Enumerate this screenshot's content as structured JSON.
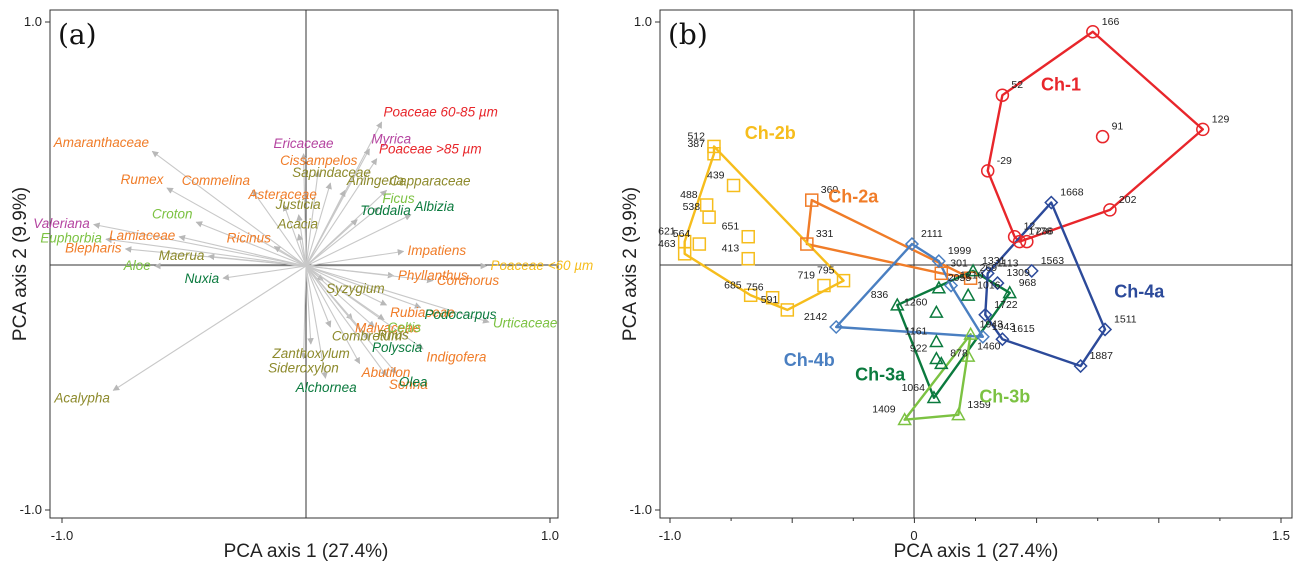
{
  "panels": {
    "a": {
      "label": "(a)",
      "xlabel": "PCA axis 1 (27.4%)",
      "ylabel": "PCA axis 2 (9.9%)",
      "xticks": [
        "-1.0",
        "1.0"
      ],
      "yticks": [
        "1.0",
        "-1.0"
      ]
    },
    "b": {
      "label": "(b)",
      "xlabel": "PCA axis 1 (27.4%)",
      "ylabel": "PCA axis 2 (9.9%)",
      "xticks": [
        "-1.0",
        "0",
        "1.5"
      ],
      "yticks": [
        "1.0",
        "-1.0"
      ]
    }
  },
  "colors": {
    "red": "#e8262b",
    "orange": "#f07c28",
    "yellow": "#f6bd1c",
    "olive": "#8d8a2c",
    "lightgreen": "#7cc242",
    "darkgreen": "#0b7a3e",
    "magenta": "#b544a0",
    "blue": "#4a7fc1",
    "navy": "#2c4a9a",
    "arrow": "#c8c8c8"
  },
  "chart_data": [
    {
      "type": "scatter",
      "subtype": "pca-loadings-biplot",
      "panel": "(a)",
      "xlabel": "PCA axis 1 (27.4%)",
      "ylabel": "PCA axis 2 (9.9%)",
      "xlim": [
        -1.0,
        1.0
      ],
      "ylim": [
        -1.0,
        1.0
      ],
      "grid": false,
      "zero_lines": true,
      "loadings": [
        {
          "name": "Poaceae 60-85 µm",
          "x": 0.31,
          "y": 0.59,
          "color": "red"
        },
        {
          "name": "Poaceae >85 µm",
          "x": 0.29,
          "y": 0.44,
          "color": "red"
        },
        {
          "name": "Myrica",
          "x": 0.26,
          "y": 0.48,
          "color": "magenta"
        },
        {
          "name": "Ericaceae",
          "x": -0.01,
          "y": 0.46,
          "color": "magenta"
        },
        {
          "name": "Valeriana",
          "x": -0.87,
          "y": 0.17,
          "color": "magenta"
        },
        {
          "name": "Amaranthaceae",
          "x": -0.63,
          "y": 0.47,
          "color": "orange"
        },
        {
          "name": "Cissampelos",
          "x": 0.05,
          "y": 0.39,
          "color": "orange"
        },
        {
          "name": "Rumex",
          "x": -0.57,
          "y": 0.32,
          "color": "orange"
        },
        {
          "name": "Commelina",
          "x": -0.22,
          "y": 0.31,
          "color": "orange"
        },
        {
          "name": "Asteraceae",
          "x": -0.09,
          "y": 0.25,
          "color": "orange"
        },
        {
          "name": "Lamiaceae",
          "x": -0.52,
          "y": 0.12,
          "color": "orange"
        },
        {
          "name": "Blepharis",
          "x": -0.74,
          "y": 0.07,
          "color": "orange"
        },
        {
          "name": "Ricinus",
          "x": -0.13,
          "y": 0.08,
          "color": "orange"
        },
        {
          "name": "Impatiens",
          "x": 0.4,
          "y": 0.06,
          "color": "orange"
        },
        {
          "name": "Phyllanthus",
          "x": 0.36,
          "y": -0.04,
          "color": "orange"
        },
        {
          "name": "Corchorus",
          "x": 0.52,
          "y": -0.06,
          "color": "orange"
        },
        {
          "name": "Rubiaceae",
          "x": 0.33,
          "y": -0.16,
          "color": "orange"
        },
        {
          "name": "Malvaceae",
          "x": 0.19,
          "y": -0.22,
          "color": "orange"
        },
        {
          "name": "Indigofera",
          "x": 0.48,
          "y": -0.34,
          "color": "orange"
        },
        {
          "name": "Abutilon",
          "x": 0.22,
          "y": -0.4,
          "color": "orange"
        },
        {
          "name": "Senna",
          "x": 0.33,
          "y": -0.45,
          "color": "orange"
        },
        {
          "name": "Sapindaceae",
          "x": 0.1,
          "y": 0.34,
          "color": "olive"
        },
        {
          "name": "Aningeria",
          "x": 0.16,
          "y": 0.31,
          "color": "olive"
        },
        {
          "name": "Capparaceae",
          "x": 0.33,
          "y": 0.31,
          "color": "olive"
        },
        {
          "name": "Justicia",
          "x": -0.03,
          "y": 0.21,
          "color": "olive"
        },
        {
          "name": "Acacia",
          "x": -0.03,
          "y": 0.13,
          "color": "olive"
        },
        {
          "name": "Maerua",
          "x": -0.4,
          "y": 0.04,
          "color": "olive"
        },
        {
          "name": "Syzygium",
          "x": 0.07,
          "y": -0.06,
          "color": "olive"
        },
        {
          "name": "Combretum",
          "x": 0.1,
          "y": -0.25,
          "color": "olive"
        },
        {
          "name": "Rhus",
          "x": 0.28,
          "y": -0.25,
          "color": "olive"
        },
        {
          "name": "Zanthoxylum",
          "x": 0.02,
          "y": -0.32,
          "color": "olive"
        },
        {
          "name": "Sideroxylon",
          "x": -0.01,
          "y": -0.38,
          "color": "olive"
        },
        {
          "name": "Acalypha",
          "x": -0.79,
          "y": -0.51,
          "color": "olive"
        },
        {
          "name": "Croton",
          "x": -0.45,
          "y": 0.18,
          "color": "lightgreen"
        },
        {
          "name": "Euphorbia",
          "x": -0.82,
          "y": 0.11,
          "color": "lightgreen"
        },
        {
          "name": "Aloe",
          "x": -0.62,
          "y": 0.0,
          "color": "lightgreen"
        },
        {
          "name": "Ficus",
          "x": 0.3,
          "y": 0.24,
          "color": "lightgreen"
        },
        {
          "name": "Poaceae <60 µm",
          "x": 0.74,
          "y": 0.0,
          "color": "yellow"
        },
        {
          "name": "Celtis",
          "x": 0.32,
          "y": -0.22,
          "color": "lightgreen"
        },
        {
          "name": "Urticaceae",
          "x": 0.75,
          "y": -0.23,
          "color": "lightgreen"
        },
        {
          "name": "Toddalia",
          "x": 0.21,
          "y": 0.19,
          "color": "darkgreen"
        },
        {
          "name": "Albizia",
          "x": 0.43,
          "y": 0.21,
          "color": "darkgreen"
        },
        {
          "name": "Nuxia",
          "x": -0.34,
          "y": -0.05,
          "color": "darkgreen"
        },
        {
          "name": "Podocarpus",
          "x": 0.47,
          "y": -0.17,
          "color": "darkgreen"
        },
        {
          "name": "Polyscia",
          "x": 0.26,
          "y": -0.3,
          "color": "darkgreen"
        },
        {
          "name": "Olea",
          "x": 0.37,
          "y": -0.44,
          "color": "darkgreen"
        },
        {
          "name": "Alchornea",
          "x": 0.08,
          "y": -0.46,
          "color": "darkgreen"
        }
      ]
    },
    {
      "type": "scatter",
      "subtype": "pca-sample-scores",
      "panel": "(b)",
      "xlabel": "PCA axis 1 (27.4%)",
      "ylabel": "PCA axis 2 (9.9%)",
      "xlim": [
        -1.0,
        1.5
      ],
      "ylim": [
        -1.0,
        1.0
      ],
      "grid": false,
      "zero_lines": true,
      "groups": [
        {
          "name": "Ch-1",
          "marker": "circle",
          "color": "red",
          "points": [
            {
              "label": "166",
              "x": 0.73,
              "y": 0.96
            },
            {
              "label": "52",
              "x": 0.36,
              "y": 0.7
            },
            {
              "label": "129",
              "x": 1.18,
              "y": 0.56
            },
            {
              "label": "91",
              "x": 0.77,
              "y": 0.53
            },
            {
              "label": "-29",
              "x": 0.3,
              "y": 0.39
            },
            {
              "label": "202",
              "x": 0.8,
              "y": 0.23
            },
            {
              "label": "12",
              "x": 0.41,
              "y": 0.12
            },
            {
              "label": "236",
              "x": 0.46,
              "y": 0.1
            },
            {
              "label": "1776",
              "x": 0.43,
              "y": 0.1
            }
          ],
          "hull": [
            "166",
            "129",
            "202",
            "1776",
            "12",
            "-29",
            "52"
          ]
        },
        {
          "name": "Ch-2a",
          "marker": "square",
          "color": "orange",
          "points": [
            {
              "label": "360",
              "x": -0.42,
              "y": 0.27
            },
            {
              "label": "331",
              "x": -0.44,
              "y": 0.09
            },
            {
              "label": "301",
              "x": 0.11,
              "y": -0.03
            },
            {
              "label": "269",
              "x": 0.23,
              "y": -0.05
            }
          ],
          "hull": [
            "360",
            "269",
            "301",
            "331"
          ]
        },
        {
          "name": "Ch-2b",
          "marker": "square",
          "color": "yellow",
          "points": [
            {
              "label": "512",
              "x": -0.82,
              "y": 0.49
            },
            {
              "label": "387",
              "x": -0.82,
              "y": 0.46
            },
            {
              "label": "439",
              "x": -0.74,
              "y": 0.33
            },
            {
              "label": "488",
              "x": -0.85,
              "y": 0.25
            },
            {
              "label": "538",
              "x": -0.84,
              "y": 0.2
            },
            {
              "label": "621",
              "x": -0.94,
              "y": 0.1
            },
            {
              "label": "564",
              "x": -0.88,
              "y": 0.09
            },
            {
              "label": "463",
              "x": -0.94,
              "y": 0.05
            },
            {
              "label": "651",
              "x": -0.68,
              "y": 0.12
            },
            {
              "label": "413",
              "x": -0.68,
              "y": 0.03
            },
            {
              "label": "756",
              "x": -0.58,
              "y": -0.13
            },
            {
              "label": "685",
              "x": -0.67,
              "y": -0.12
            },
            {
              "label": "591",
              "x": -0.52,
              "y": -0.18
            },
            {
              "label": "719",
              "x": -0.37,
              "y": -0.08
            },
            {
              "label": "795",
              "x": -0.29,
              "y": -0.06
            }
          ],
          "hull": [
            "512",
            "795",
            "591",
            "685",
            "463",
            "621",
            "387"
          ]
        },
        {
          "name": "Ch-3a",
          "marker": "triangle",
          "color": "darkgreen",
          "points": [
            {
              "label": "1331",
              "x": 0.24,
              "y": -0.02
            },
            {
              "label": "968",
              "x": 0.39,
              "y": -0.11
            },
            {
              "label": "836",
              "x": -0.07,
              "y": -0.16
            },
            {
              "label": "2055",
              "x": 0.1,
              "y": -0.09
            },
            {
              "label": "1016",
              "x": 0.22,
              "y": -0.12
            },
            {
              "label": "1260",
              "x": 0.09,
              "y": -0.19
            },
            {
              "label": "1161",
              "x": 0.09,
              "y": -0.31
            },
            {
              "label": "922",
              "x": 0.09,
              "y": -0.38
            },
            {
              "label": "878",
              "x": 0.11,
              "y": -0.4
            },
            {
              "label": "1064",
              "x": 0.08,
              "y": -0.54
            }
          ],
          "hull": [
            "1331",
            "968",
            "1064",
            "836"
          ]
        },
        {
          "name": "Ch-3b",
          "marker": "triangle",
          "color": "lightgreen",
          "points": [
            {
              "label": "1943",
              "x": 0.23,
              "y": -0.28
            },
            {
              "label": "1460",
              "x": 0.22,
              "y": -0.37
            },
            {
              "label": "1359",
              "x": 0.18,
              "y": -0.61
            },
            {
              "label": "1409",
              "x": -0.04,
              "y": -0.63
            }
          ],
          "hull": [
            "1943",
            "1359",
            "1409"
          ]
        },
        {
          "name": "Ch-4a",
          "marker": "diamond",
          "color": "navy",
          "points": [
            {
              "label": "1668",
              "x": 0.56,
              "y": 0.26
            },
            {
              "label": "1113",
              "x": 0.3,
              "y": -0.03
            },
            {
              "label": "1309",
              "x": 0.34,
              "y": -0.07
            },
            {
              "label": "1563",
              "x": 0.48,
              "y": -0.02
            },
            {
              "label": "1722",
              "x": 0.29,
              "y": -0.2
            },
            {
              "label": "1615",
              "x": 0.36,
              "y": -0.3
            },
            {
              "label": "1511",
              "x": 0.78,
              "y": -0.26
            },
            {
              "label": "1887",
              "x": 0.68,
              "y": -0.41
            }
          ],
          "hull": [
            "1668",
            "1511",
            "1887",
            "1615",
            "1722",
            "1113"
          ]
        },
        {
          "name": "Ch-4b",
          "marker": "diamond",
          "color": "blue",
          "points": [
            {
              "label": "2111",
              "x": -0.01,
              "y": 0.09
            },
            {
              "label": "1999",
              "x": 0.1,
              "y": 0.02
            },
            {
              "label": "1210",
              "x": 0.15,
              "y": -0.08
            },
            {
              "label": "2142",
              "x": -0.32,
              "y": -0.25
            },
            {
              "label": "1943",
              "x": 0.28,
              "y": -0.29
            }
          ],
          "hull": [
            "2111",
            "1999",
            "1210",
            "1943",
            "2142"
          ]
        }
      ],
      "group_labels": [
        {
          "name": "Ch-1",
          "color": "red",
          "x": 0.6,
          "y": 0.72
        },
        {
          "name": "Ch-2a",
          "color": "orange",
          "x": -0.25,
          "y": 0.26
        },
        {
          "name": "Ch-2b",
          "color": "yellow",
          "x": -0.59,
          "y": 0.52
        },
        {
          "name": "Ch-3a",
          "color": "darkgreen",
          "x": -0.14,
          "y": -0.47
        },
        {
          "name": "Ch-3b",
          "color": "lightgreen",
          "x": 0.37,
          "y": -0.56
        },
        {
          "name": "Ch-4a",
          "color": "navy",
          "x": 0.92,
          "y": -0.13
        },
        {
          "name": "Ch-4b",
          "color": "blue",
          "x": -0.43,
          "y": -0.41
        }
      ]
    }
  ]
}
